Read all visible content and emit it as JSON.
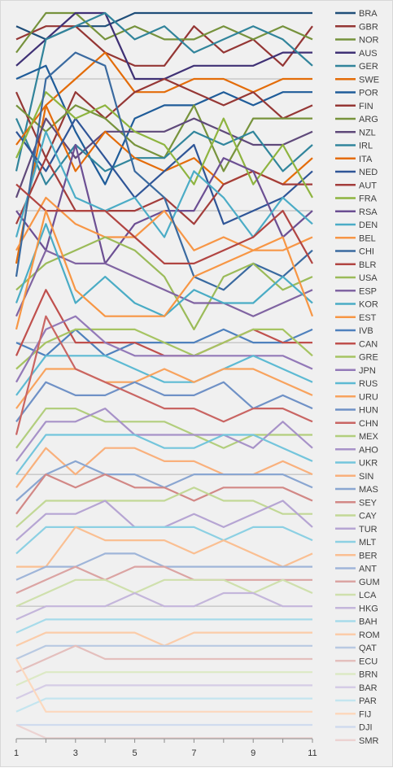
{
  "chart_data": {
    "type": "line",
    "x": [
      1,
      2,
      3,
      4,
      5,
      6,
      7,
      8,
      9,
      10,
      11
    ],
    "x_tick_labels": [
      "1",
      "3",
      "5",
      "7",
      "9",
      "11"
    ],
    "x_tick_values": [
      1,
      3,
      5,
      7,
      9,
      11
    ],
    "ylim": [
      1,
      55
    ],
    "y_reversed": true,
    "grid": "horizontal",
    "legend_position": "right",
    "series": [
      {
        "name": "BRA",
        "color": "#1f4e79",
        "values": [
          2,
          3,
          2,
          2,
          1,
          1,
          1,
          1,
          1,
          1,
          1
        ]
      },
      {
        "name": "GBR",
        "color": "#943634",
        "values": [
          3,
          2,
          2,
          4,
          5,
          5,
          2,
          4,
          3,
          5,
          2
        ]
      },
      {
        "name": "NOR",
        "color": "#76923c",
        "values": [
          4,
          1,
          1,
          3,
          2,
          3,
          3,
          2,
          3,
          2,
          3
        ]
      },
      {
        "name": "AUS",
        "color": "#3f3175",
        "values": [
          5,
          3,
          1,
          1,
          6,
          6,
          5,
          5,
          5,
          4,
          4
        ]
      },
      {
        "name": "GER",
        "color": "#31849b",
        "values": [
          13,
          3,
          2,
          1,
          3,
          2,
          4,
          3,
          2,
          3,
          5
        ]
      },
      {
        "name": "SWE",
        "color": "#e36c09",
        "values": [
          20,
          8,
          6,
          4,
          7,
          7,
          6,
          6,
          7,
          6,
          6
        ]
      },
      {
        "name": "POR",
        "color": "#1f5c99",
        "values": [
          6,
          5,
          10,
          14,
          9,
          8,
          8,
          7,
          8,
          7,
          7
        ]
      },
      {
        "name": "FIN",
        "color": "#953735",
        "values": [
          7,
          12,
          7,
          9,
          7,
          6,
          7,
          8,
          7,
          9,
          8
        ]
      },
      {
        "name": "ARG",
        "color": "#77933c",
        "values": [
          8,
          10,
          8,
          9,
          11,
          12,
          8,
          13,
          9,
          9,
          9
        ]
      },
      {
        "name": "NZL",
        "color": "#5f497a",
        "values": [
          15,
          9,
          12,
          10,
          10,
          10,
          9,
          10,
          11,
          11,
          10
        ]
      },
      {
        "name": "IRL",
        "color": "#31859c",
        "values": [
          9,
          14,
          11,
          13,
          12,
          12,
          10,
          11,
          10,
          13,
          11
        ]
      },
      {
        "name": "ITA",
        "color": "#e46c0a",
        "values": [
          11,
          8,
          13,
          10,
          12,
          13,
          12,
          14,
          13,
          14,
          12
        ]
      },
      {
        "name": "NED",
        "color": "#2f5597",
        "values": [
          10,
          13,
          9,
          12,
          15,
          13,
          11,
          17,
          16,
          15,
          13
        ]
      },
      {
        "name": "AUT",
        "color": "#a33d3b",
        "values": [
          17,
          12,
          16,
          16,
          16,
          15,
          17,
          14,
          13,
          14,
          14
        ]
      },
      {
        "name": "FRA",
        "color": "#8eb43f",
        "values": [
          12,
          7,
          9,
          8,
          10,
          11,
          14,
          9,
          14,
          11,
          15
        ]
      },
      {
        "name": "RSA",
        "color": "#6c4f93",
        "values": [
          16,
          19,
          11,
          20,
          17,
          16,
          16,
          12,
          13,
          18,
          16
        ]
      },
      {
        "name": "DEN",
        "color": "#4bacc6",
        "values": [
          18,
          10,
          15,
          16,
          15,
          18,
          13,
          15,
          18,
          15,
          17
        ]
      },
      {
        "name": "BEL",
        "color": "#f79646",
        "values": [
          19,
          15,
          17,
          18,
          18,
          16,
          19,
          18,
          19,
          19,
          18
        ]
      },
      {
        "name": "CHI",
        "color": "#3a6aa0",
        "values": [
          21,
          6,
          4,
          5,
          13,
          15,
          21,
          22,
          20,
          21,
          19
        ]
      },
      {
        "name": "BLR",
        "color": "#b14542",
        "values": [
          14,
          16,
          16,
          16,
          18,
          20,
          20,
          19,
          18,
          16,
          20
        ]
      },
      {
        "name": "USA",
        "color": "#9bbb59",
        "values": [
          22,
          20,
          19,
          18,
          19,
          21,
          25,
          21,
          20,
          22,
          21
        ]
      },
      {
        "name": "ESP",
        "color": "#8064a2",
        "values": [
          24,
          19,
          20,
          20,
          21,
          22,
          23,
          23,
          24,
          23,
          22
        ]
      },
      {
        "name": "KOR",
        "color": "#4aacc5",
        "values": [
          23,
          17,
          23,
          21,
          23,
          24,
          22,
          23,
          23,
          21,
          23
        ]
      },
      {
        "name": "EST",
        "color": "#f79644",
        "values": [
          25,
          16,
          22,
          24,
          24,
          24,
          21,
          20,
          19,
          18,
          24
        ]
      },
      {
        "name": "IVB",
        "color": "#4f81bd",
        "values": [
          26,
          27,
          25,
          27,
          26,
          26,
          26,
          25,
          26,
          26,
          25
        ]
      },
      {
        "name": "CAN",
        "color": "#c0504d",
        "values": [
          27,
          22,
          26,
          26,
          26,
          27,
          27,
          26,
          25,
          26,
          26
        ]
      },
      {
        "name": "GRE",
        "color": "#a6c462",
        "values": [
          28,
          26,
          25,
          25,
          25,
          26,
          27,
          26,
          25,
          25,
          27
        ]
      },
      {
        "name": "JPN",
        "color": "#9379b8",
        "values": [
          29,
          25,
          24,
          26,
          27,
          27,
          27,
          27,
          27,
          27,
          28
        ]
      },
      {
        "name": "RUS",
        "color": "#5dbad3",
        "values": [
          30,
          27,
          27,
          27,
          28,
          29,
          29,
          28,
          27,
          28,
          29
        ]
      },
      {
        "name": "URU",
        "color": "#f8a35e",
        "values": [
          31,
          28,
          28,
          29,
          29,
          28,
          29,
          28,
          28,
          29,
          30
        ]
      },
      {
        "name": "HUN",
        "color": "#6f91c6",
        "values": [
          32,
          29,
          30,
          30,
          29,
          30,
          30,
          29,
          31,
          30,
          31
        ]
      },
      {
        "name": "CHN",
        "color": "#c96563",
        "values": [
          33,
          24,
          28,
          29,
          30,
          31,
          31,
          32,
          31,
          31,
          32
        ]
      },
      {
        "name": "MEX",
        "color": "#b2ce7d",
        "values": [
          34,
          31,
          31,
          32,
          32,
          32,
          33,
          34,
          33,
          33,
          33
        ]
      },
      {
        "name": "AHO",
        "color": "#a792c8",
        "values": [
          35,
          32,
          32,
          31,
          33,
          33,
          33,
          33,
          34,
          32,
          34
        ]
      },
      {
        "name": "UKR",
        "color": "#74c5dc",
        "values": [
          36,
          33,
          33,
          33,
          33,
          34,
          34,
          33,
          33,
          34,
          35
        ]
      },
      {
        "name": "SIN",
        "color": "#f9b07c",
        "values": [
          37,
          34,
          36,
          34,
          34,
          35,
          35,
          36,
          36,
          35,
          36
        ]
      },
      {
        "name": "MAS",
        "color": "#8aa6d1",
        "values": [
          38,
          36,
          35,
          36,
          36,
          37,
          36,
          36,
          36,
          36,
          37
        ]
      },
      {
        "name": "SEY",
        "color": "#d28886",
        "values": [
          39,
          36,
          37,
          36,
          37,
          37,
          38,
          37,
          37,
          37,
          38
        ]
      },
      {
        "name": "CAY",
        "color": "#c2d896",
        "values": [
          40,
          38,
          38,
          38,
          38,
          38,
          37,
          38,
          38,
          39,
          39
        ]
      },
      {
        "name": "TUR",
        "color": "#b6a5d3",
        "values": [
          41,
          39,
          39,
          38,
          40,
          40,
          39,
          40,
          39,
          38,
          40
        ]
      },
      {
        "name": "MLT",
        "color": "#8cd0e3",
        "values": [
          42,
          40,
          40,
          40,
          40,
          40,
          40,
          41,
          40,
          40,
          41
        ]
      },
      {
        "name": "BER",
        "color": "#fabf92",
        "values": [
          43,
          43,
          40,
          41,
          41,
          41,
          42,
          41,
          42,
          43,
          42
        ]
      },
      {
        "name": "ANT",
        "color": "#9fb5d9",
        "values": [
          44,
          43,
          43,
          42,
          42,
          43,
          43,
          43,
          43,
          43,
          43
        ]
      },
      {
        "name": "GUM",
        "color": "#dba4a3",
        "values": [
          45,
          44,
          43,
          44,
          43,
          43,
          44,
          44,
          44,
          44,
          44
        ]
      },
      {
        "name": "LCA",
        "color": "#cfe0ad",
        "values": [
          46,
          45,
          44,
          44,
          45,
          44,
          44,
          44,
          45,
          44,
          45
        ]
      },
      {
        "name": "HKG",
        "color": "#c4b6db",
        "values": [
          47,
          46,
          46,
          46,
          45,
          46,
          46,
          45,
          45,
          46,
          46
        ]
      },
      {
        "name": "BAH",
        "color": "#a7dbea",
        "values": [
          48,
          47,
          47,
          47,
          47,
          47,
          47,
          47,
          47,
          47,
          47
        ]
      },
      {
        "name": "ROM",
        "color": "#fbcca9",
        "values": [
          49,
          48,
          48,
          48,
          48,
          49,
          48,
          48,
          48,
          48,
          48
        ]
      },
      {
        "name": "QAT",
        "color": "#b8c9e2",
        "values": [
          50,
          49,
          49,
          49,
          49,
          49,
          49,
          49,
          49,
          49,
          49
        ]
      },
      {
        "name": "ECU",
        "color": "#e4bfbd",
        "values": [
          51,
          50,
          49,
          50,
          50,
          50,
          50,
          50,
          50,
          50,
          50
        ]
      },
      {
        "name": "BRN",
        "color": "#dce9c5",
        "values": [
          52,
          51,
          51,
          51,
          51,
          51,
          51,
          51,
          51,
          51,
          51
        ]
      },
      {
        "name": "BAR",
        "color": "#d5cce6",
        "values": [
          53,
          52,
          52,
          52,
          52,
          52,
          52,
          52,
          52,
          52,
          52
        ]
      },
      {
        "name": "PAR",
        "color": "#c4e5ef",
        "values": [
          54,
          53,
          53,
          53,
          53,
          53,
          53,
          53,
          53,
          53,
          53
        ]
      },
      {
        "name": "FIJ",
        "color": "#fcd8bd",
        "values": [
          50,
          54,
          54,
          54,
          54,
          54,
          54,
          54,
          54,
          54,
          54
        ]
      },
      {
        "name": "DJI",
        "color": "#d0dbee",
        "values": [
          55,
          55,
          55,
          55,
          55,
          55,
          55,
          55,
          55,
          55,
          55
        ]
      },
      {
        "name": "SMR",
        "color": "#ecd3d2",
        "values": [
          55,
          56,
          56,
          56,
          56,
          56,
          56,
          56,
          56,
          56,
          56
        ]
      }
    ]
  }
}
